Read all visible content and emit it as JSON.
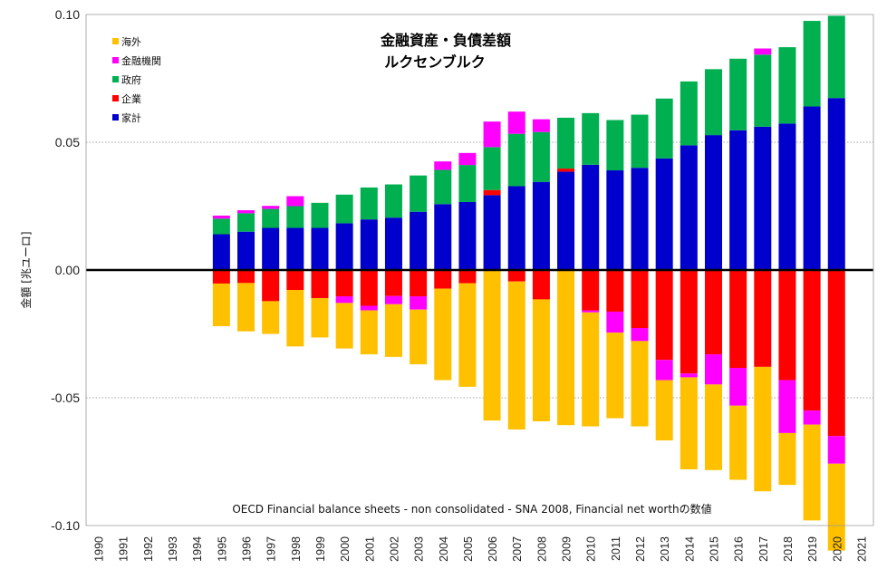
{
  "chart_data": {
    "type": "bar",
    "stacked": true,
    "title": [
      "金融資産・負債差額",
      "ルクセンブルク"
    ],
    "ylabel": "金額 [兆ユーロ]",
    "ylim": [
      -0.1,
      0.1
    ],
    "yticks": [
      0.1,
      0.05,
      0.0,
      -0.05,
      -0.1
    ],
    "ytick_labels": [
      "0.10",
      "0.05",
      "0.00",
      "-0.05",
      "-0.10"
    ],
    "legend_position": "top-left",
    "note": "OECD Financial balance sheets - non consolidated - SNA 2008, Financial net worthの数値",
    "categories": [
      "1990",
      "1991",
      "1992",
      "1993",
      "1994",
      "1995",
      "1996",
      "1997",
      "1998",
      "1999",
      "2000",
      "2001",
      "2002",
      "2003",
      "2004",
      "2005",
      "2006",
      "2007",
      "2008",
      "2009",
      "2010",
      "2011",
      "2012",
      "2013",
      "2014",
      "2015",
      "2016",
      "2017",
      "2018",
      "2019",
      "2020",
      "2021"
    ],
    "series": [
      {
        "name": "海外",
        "color": "#FFC000",
        "values": [
          null,
          null,
          null,
          null,
          null,
          -0.0167,
          -0.0189,
          -0.0128,
          -0.0221,
          -0.0154,
          -0.0178,
          -0.0172,
          -0.0206,
          -0.0214,
          -0.0358,
          -0.0405,
          -0.0589,
          -0.0579,
          -0.0477,
          -0.0607,
          -0.0446,
          -0.0335,
          -0.0334,
          -0.0236,
          -0.036,
          -0.0335,
          -0.029,
          -0.0487,
          -0.0203,
          -0.0375,
          -0.034,
          null
        ]
      },
      {
        "name": "金融機関",
        "color": "#FF00FF",
        "values": [
          null,
          0.0,
          null,
          null,
          null,
          0.0012,
          0.0012,
          0.0012,
          0.0039,
          0.0,
          0.0,
          0.0,
          0.0,
          0.0,
          0.0033,
          0.0047,
          0.01,
          0.0087,
          0.005,
          0.0,
          0.0,
          0.0,
          0.0,
          0.0,
          0.0,
          0.0,
          0.0,
          0.0024,
          0.0,
          0.0,
          0.0,
          null
        ]
      },
      {
        "name": "金融機関（負）",
        "color": "#FF00FF",
        "hidden_in_legend": true,
        "values": [
          null,
          null,
          null,
          null,
          null,
          0,
          0,
          0,
          0,
          0,
          -0.0026,
          -0.0018,
          -0.0032,
          -0.0052,
          0,
          0,
          0,
          0,
          0,
          0,
          -0.0008,
          -0.0082,
          -0.0051,
          -0.0079,
          -0.0015,
          -0.0118,
          -0.0148,
          0,
          -0.0207,
          -0.0055,
          -0.0108,
          null
        ]
      },
      {
        "name": "政府",
        "color": "#00B050",
        "values": [
          null,
          null,
          null,
          null,
          null,
          0.0061,
          0.0072,
          0.0074,
          0.0085,
          0.0098,
          0.0112,
          0.0125,
          0.013,
          0.0142,
          0.0134,
          0.0145,
          0.0168,
          0.0205,
          0.0195,
          0.0199,
          0.0202,
          0.0197,
          0.0208,
          0.0234,
          0.025,
          0.0258,
          0.028,
          0.0282,
          0.0299,
          0.0335,
          0.0322,
          null
        ]
      },
      {
        "name": "企業",
        "color": "#FF0000",
        "values": [
          null,
          null,
          null,
          null,
          null,
          -0.0053,
          -0.0051,
          -0.0122,
          -0.0078,
          -0.011,
          -0.0103,
          -0.014,
          -0.0102,
          -0.0103,
          -0.0073,
          -0.0052,
          0.002,
          -0.0045,
          -0.0115,
          0.0012,
          -0.0158,
          -0.0163,
          -0.0227,
          -0.0352,
          -0.0405,
          -0.033,
          -0.0383,
          -0.0379,
          -0.0431,
          -0.055,
          -0.065,
          null
        ]
      },
      {
        "name": "家計",
        "color": "#0000CC",
        "values": [
          null,
          null,
          null,
          null,
          null,
          0.014,
          0.015,
          0.0165,
          0.0165,
          0.0165,
          0.0183,
          0.0198,
          0.0205,
          0.0228,
          0.0258,
          0.0266,
          0.0293,
          0.0328,
          0.0345,
          0.0385,
          0.0412,
          0.039,
          0.04,
          0.0437,
          0.0488,
          0.0528,
          0.0547,
          0.0561,
          0.0573,
          0.064,
          0.0673,
          null
        ]
      }
    ]
  }
}
